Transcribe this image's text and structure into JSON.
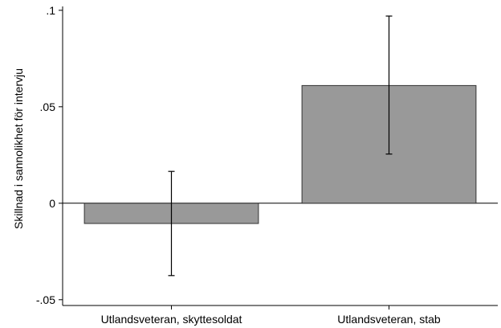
{
  "chart_data": {
    "type": "bar",
    "categories": [
      "Utlandsveteran, skyttesoldat",
      "Utlandsveteran, stab"
    ],
    "values": [
      -0.0105,
      0.061
    ],
    "ci_low": [
      -0.0375,
      0.0255
    ],
    "ci_high": [
      0.0165,
      0.097
    ],
    "ylabel": "Skillnad i sannolikhet för intervju",
    "xlabel": "",
    "ylim": [
      -0.053,
      0.102
    ],
    "yticks": [
      {
        "value": -0.05,
        "label": "-.05"
      },
      {
        "value": 0,
        "label": "0"
      },
      {
        "value": 0.05,
        "label": ".05"
      },
      {
        "value": 0.1,
        "label": ".1"
      }
    ],
    "grid": false,
    "zero_line": true,
    "bar_color": "#999999",
    "bar_edge_color": "#333333"
  }
}
